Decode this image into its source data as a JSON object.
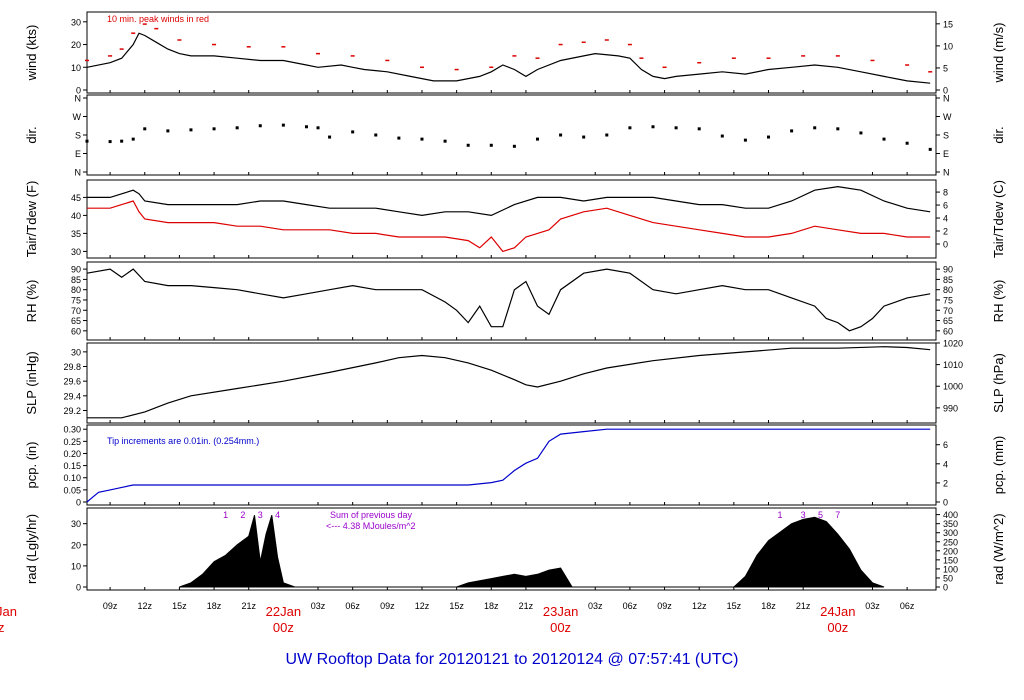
{
  "footer_title": "UW Rooftop Data for 20120121  to  20120124 @ 07:57:41  (UTC)",
  "colors": {
    "red": "#dd0000",
    "blue": "#0000cc",
    "purple": "#9900cc",
    "black": "#000000"
  },
  "x_axis": {
    "hour_labels": [
      "09z",
      "12z",
      "15z",
      "18z",
      "21z",
      "03z",
      "06z",
      "09z",
      "12z",
      "15z",
      "18z",
      "21z",
      "03z",
      "06z",
      "09z",
      "12z",
      "15z",
      "18z",
      "21z",
      "03z",
      "06z"
    ],
    "hour_values": [
      9,
      12,
      15,
      18,
      21,
      27,
      30,
      33,
      36,
      39,
      42,
      45,
      51,
      54,
      57,
      60,
      63,
      66,
      69,
      75,
      78
    ],
    "date_labels": [
      {
        "text": "22Jan",
        "sub": "00z",
        "hour": 24
      },
      {
        "text": "23Jan",
        "sub": "00z",
        "hour": 48
      },
      {
        "text": "24Jan",
        "sub": "00z",
        "hour": 72
      }
    ],
    "left_cut_labels": [
      "Jan",
      "z"
    ]
  },
  "chart_data": [
    {
      "type": "line",
      "id": "wind",
      "ylabel": "wind (kts)",
      "ylabel_right": "wind (m/s)",
      "annotation": "10 min. peak winds in red",
      "yticks": [
        0,
        10,
        20,
        30
      ],
      "ylim": [
        0,
        33
      ],
      "yticks_right": [
        0,
        5,
        10,
        15
      ],
      "ylim_right": [
        0,
        17
      ],
      "series": [
        {
          "x": [
            7,
            9,
            10,
            11,
            11.5,
            12,
            13,
            14,
            15,
            16,
            18,
            20,
            22,
            24,
            26,
            27,
            29,
            30,
            31,
            33,
            35,
            37,
            39,
            41,
            42,
            43,
            44,
            45,
            46,
            48,
            50,
            51,
            53,
            54,
            55,
            56,
            57,
            58,
            60,
            62,
            64,
            66,
            68,
            70,
            72,
            74,
            76,
            78,
            80
          ],
          "y": [
            10,
            12,
            14,
            20,
            25,
            24,
            21,
            18,
            16,
            15,
            15,
            14,
            13,
            13,
            11,
            10,
            11,
            10,
            9,
            8,
            6,
            4,
            4,
            6,
            8,
            11,
            9,
            6,
            9,
            13,
            15,
            16,
            15,
            14,
            9,
            6,
            5,
            6,
            7,
            8,
            7,
            9,
            10,
            11,
            10,
            8,
            6,
            4,
            3
          ]
        },
        {
          "x": [
            7,
            9,
            10,
            11,
            12,
            13,
            15,
            18,
            21,
            24,
            27,
            30,
            33,
            36,
            39,
            42,
            44,
            46,
            48,
            50,
            52,
            54,
            55,
            57,
            60,
            63,
            66,
            69,
            72,
            75,
            78,
            80
          ],
          "y": [
            13,
            15,
            18,
            25,
            29,
            27,
            22,
            20,
            19,
            19,
            16,
            15,
            13,
            10,
            9,
            10,
            15,
            14,
            20,
            21,
            22,
            20,
            14,
            10,
            12,
            14,
            14,
            15,
            15,
            13,
            11,
            8
          ]
        }
      ]
    },
    {
      "type": "scatter",
      "id": "dir",
      "ylabel": "dir.",
      "ylabel_right": "dir.",
      "yticks": [
        "N",
        "E",
        "S",
        "W",
        "N"
      ],
      "ylim": [
        0,
        360
      ],
      "series": [
        {
          "x": [
            7,
            9,
            10,
            11,
            12,
            14,
            16,
            18,
            20,
            22,
            24,
            26,
            27,
            28,
            30,
            32,
            34,
            36,
            38,
            40,
            42,
            44,
            46,
            48,
            50,
            52,
            54,
            56,
            58,
            60,
            62,
            64,
            66,
            68,
            70,
            72,
            74,
            76,
            78,
            80
          ],
          "y": [
            150,
            148,
            150,
            160,
            210,
            200,
            205,
            210,
            215,
            225,
            228,
            220,
            215,
            170,
            195,
            180,
            165,
            160,
            150,
            130,
            130,
            125,
            160,
            180,
            170,
            180,
            215,
            220,
            215,
            210,
            175,
            155,
            170,
            200,
            215,
            210,
            190,
            160,
            140,
            110
          ]
        }
      ]
    },
    {
      "type": "line",
      "id": "temp",
      "ylabel": "Tair/Tdew (F)",
      "ylabel_right": "Tair/Tdew (C)",
      "yticks": [
        30,
        35,
        40,
        45
      ],
      "ylim": [
        29,
        49
      ],
      "yticks_right": [
        0,
        2,
        4,
        6,
        8
      ],
      "ylim_right": [
        -1.7,
        9.4
      ],
      "series": [
        {
          "x": [
            7,
            9,
            10,
            11,
            11.5,
            12,
            14,
            16,
            18,
            20,
            22,
            24,
            26,
            28,
            30,
            32,
            34,
            36,
            38,
            40,
            42,
            44,
            46,
            48,
            50,
            52,
            54,
            56,
            58,
            60,
            62,
            64,
            66,
            68,
            70,
            72,
            74,
            76,
            78,
            80
          ],
          "y": [
            45,
            45,
            46,
            47,
            46,
            44,
            43,
            43,
            43,
            43,
            44,
            44,
            43,
            42,
            42,
            42,
            41,
            40,
            41,
            41,
            40,
            43,
            45,
            45,
            44,
            45,
            45,
            45,
            44,
            43,
            43,
            42,
            42,
            44,
            47,
            48,
            47,
            44,
            42,
            41
          ]
        },
        {
          "x": [
            7,
            9,
            10,
            11,
            11.5,
            12,
            14,
            16,
            18,
            20,
            22,
            24,
            26,
            28,
            30,
            32,
            34,
            36,
            38,
            40,
            41,
            42,
            43,
            44,
            45,
            46,
            47,
            48,
            50,
            52,
            54,
            56,
            58,
            60,
            62,
            64,
            66,
            68,
            70,
            72,
            74,
            76,
            78,
            80
          ],
          "y": [
            42,
            42,
            43,
            44,
            41,
            39,
            38,
            38,
            38,
            37,
            37,
            36,
            36,
            36,
            35,
            35,
            34,
            34,
            34,
            33,
            31,
            34,
            30,
            31,
            34,
            35,
            36,
            39,
            41,
            42,
            40,
            38,
            37,
            36,
            35,
            34,
            34,
            35,
            37,
            36,
            35,
            35,
            34,
            34
          ]
        }
      ]
    },
    {
      "type": "line",
      "id": "rh",
      "ylabel": "RH (%)",
      "ylabel_right": "RH (%)",
      "yticks": [
        60,
        65,
        70,
        75,
        80,
        85,
        90
      ],
      "ylim": [
        57,
        92
      ],
      "series": [
        {
          "x": [
            7,
            9,
            10,
            11,
            12,
            14,
            16,
            18,
            20,
            22,
            24,
            26,
            28,
            30,
            32,
            34,
            36,
            38,
            39,
            40,
            41,
            42,
            43,
            44,
            45,
            46,
            47,
            48,
            50,
            52,
            54,
            56,
            58,
            60,
            62,
            64,
            66,
            68,
            70,
            71,
            72,
            73,
            74,
            75,
            76,
            78,
            80
          ],
          "y": [
            88,
            90,
            86,
            90,
            84,
            82,
            82,
            81,
            80,
            78,
            76,
            78,
            80,
            82,
            80,
            80,
            80,
            74,
            70,
            64,
            72,
            62,
            62,
            80,
            84,
            72,
            68,
            80,
            88,
            90,
            88,
            80,
            78,
            80,
            82,
            80,
            80,
            76,
            72,
            66,
            64,
            60,
            62,
            66,
            72,
            76,
            78
          ]
        }
      ]
    },
    {
      "type": "line",
      "id": "slp",
      "ylabel": "SLP (inHg)",
      "ylabel_right": "SLP (hPa)",
      "yticks": [
        29.2,
        29.4,
        29.6,
        29.8,
        30.0
      ],
      "ylim": [
        29.07,
        30.08
      ],
      "yticks_right": [
        990,
        1000,
        1010,
        1020
      ],
      "ylim_right": [
        984.4,
        1018.6
      ],
      "series": [
        {
          "x": [
            7,
            10,
            12,
            14,
            16,
            20,
            24,
            28,
            32,
            34,
            36,
            38,
            40,
            42,
            44,
            45,
            46,
            48,
            50,
            52,
            56,
            60,
            64,
            68,
            72,
            76,
            78,
            80
          ],
          "y": [
            29.1,
            29.1,
            29.18,
            29.3,
            29.4,
            29.5,
            29.6,
            29.72,
            29.85,
            29.92,
            29.95,
            29.92,
            29.85,
            29.75,
            29.62,
            29.55,
            29.52,
            29.6,
            29.7,
            29.78,
            29.88,
            29.95,
            30.0,
            30.05,
            30.05,
            30.07,
            30.06,
            30.03
          ]
        }
      ]
    },
    {
      "type": "line",
      "id": "pcp",
      "ylabel": "pcp. (in)",
      "ylabel_right": "pcp. (mm)",
      "annotation": "Tip increments are 0.01in. (0.254mm.)",
      "yticks": [
        0.0,
        0.05,
        0.1,
        0.15,
        0.2,
        0.25,
        0.3
      ],
      "ylim": [
        0,
        0.305
      ],
      "yticks_right": [
        0,
        2,
        4,
        6
      ],
      "ylim_right": [
        0,
        7.75
      ],
      "series": [
        {
          "x": [
            7,
            7.5,
            8,
            9,
            10,
            11,
            12,
            20,
            30,
            36,
            38,
            40,
            42,
            43,
            44,
            45,
            46,
            47,
            48,
            50,
            52,
            56,
            60,
            64,
            68,
            72,
            76,
            80
          ],
          "y": [
            0,
            0.02,
            0.04,
            0.05,
            0.06,
            0.07,
            0.07,
            0.07,
            0.07,
            0.07,
            0.07,
            0.07,
            0.08,
            0.09,
            0.13,
            0.16,
            0.18,
            0.25,
            0.28,
            0.29,
            0.3,
            0.3,
            0.3,
            0.3,
            0.3,
            0.3,
            0.3,
            0.3
          ]
        }
      ]
    },
    {
      "type": "area",
      "id": "rad",
      "ylabel": "rad (Lgly/hr)",
      "ylabel_right": "rad (W/m^2)",
      "annotation": [
        "Sum of previous day",
        "<--- 4.38 MJoules/m^2"
      ],
      "hour_markers": [
        "1",
        "2",
        "3",
        "4"
      ],
      "hour_markers_2": [
        "1",
        "3",
        "5",
        "7"
      ],
      "yticks": [
        0,
        10,
        20,
        30
      ],
      "ylim": [
        0,
        36
      ],
      "yticks_right": [
        0,
        50,
        100,
        150,
        200,
        250,
        300,
        350,
        400
      ],
      "ylim_right": [
        0,
        420
      ],
      "series": [
        {
          "x": [
            15,
            16,
            17,
            18,
            19,
            20,
            21,
            21.5,
            22,
            22.5,
            23,
            23.5,
            24,
            25,
            26,
            39,
            40,
            41,
            42,
            43,
            44,
            45,
            46,
            47,
            48,
            49,
            63,
            64,
            65,
            66,
            67,
            68,
            69,
            70,
            71,
            72,
            73,
            74,
            75,
            76
          ],
          "y": [
            0,
            2,
            6,
            12,
            15,
            20,
            24,
            34,
            12,
            25,
            34,
            14,
            2,
            0,
            0,
            0,
            2,
            3,
            4,
            5,
            6,
            5,
            6,
            8,
            9,
            0,
            0,
            5,
            15,
            22,
            26,
            30,
            32,
            33,
            31,
            25,
            18,
            8,
            2,
            0
          ]
        }
      ]
    }
  ]
}
